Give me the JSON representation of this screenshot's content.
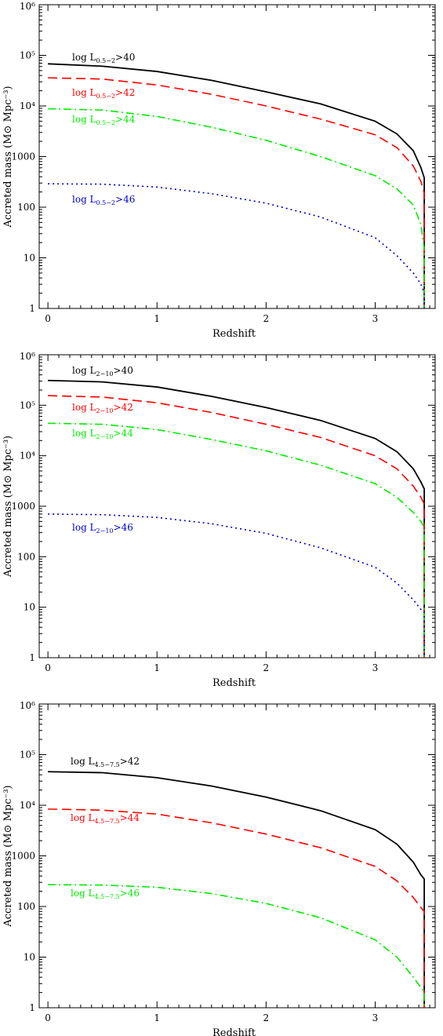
{
  "chart_data": [
    {
      "type": "line",
      "xlabel": "Redshift",
      "ylabel": "Accreted mass (M⊙ Mpc⁻³)",
      "yscale": "log",
      "xlim": [
        -0.08,
        3.55
      ],
      "ylim": [
        1,
        1000000
      ],
      "x_ticks": [
        "0",
        "1",
        "2",
        "3"
      ],
      "y_ticks": [
        "1",
        "10",
        "100",
        "1000",
        "10⁴",
        "10⁵",
        "10⁶"
      ],
      "grid": false,
      "x": [
        0,
        0.5,
        1,
        1.5,
        2,
        2.5,
        3,
        3.2,
        3.35,
        3.42,
        3.45
      ],
      "series": [
        {
          "name": "log L₀.₅₋₂>40",
          "name_main": "log L",
          "name_sub": "0.5−2",
          "name_tail": ">40",
          "color": "#000000",
          "style": "solid",
          "values": [
            68000,
            61000,
            48000,
            32000,
            19000,
            11000,
            5000,
            2800,
            1300,
            600,
            380
          ]
        },
        {
          "name": "log L₀.₅₋₂>42",
          "name_main": "log L",
          "name_sub": "0.5−2",
          "name_tail": ">42",
          "color": "#ff0000",
          "style": "dashed",
          "values": [
            36000,
            34000,
            26000,
            17000,
            10000,
            5500,
            2700,
            1500,
            650,
            320,
            190
          ]
        },
        {
          "name": "log L₀.₅₋₂>44",
          "name_main": "log L",
          "name_sub": "0.5−2",
          "name_tail": ">44",
          "color": "#00ee00",
          "style": "dashdot",
          "values": [
            8800,
            8300,
            6200,
            3800,
            2100,
            1000,
            420,
            230,
            110,
            45,
            15
          ]
        },
        {
          "name": "log L₀.₅₋₂>46",
          "name_main": "log L",
          "name_sub": "0.5−2",
          "name_tail": ">46",
          "color": "#0000cc",
          "style": "dotted",
          "values": [
            290,
            285,
            250,
            185,
            120,
            64,
            25,
            11,
            5,
            3,
            2
          ]
        }
      ]
    },
    {
      "type": "line",
      "xlabel": "Redshift",
      "ylabel": "Accreted mass (M⊙ Mpc⁻³)",
      "yscale": "log",
      "xlim": [
        -0.08,
        3.55
      ],
      "ylim": [
        1,
        1000000
      ],
      "x_ticks": [
        "0",
        "1",
        "2",
        "3"
      ],
      "y_ticks": [
        "1",
        "10",
        "100",
        "1000",
        "10⁴",
        "10⁵",
        "10⁶"
      ],
      "grid": false,
      "x": [
        0,
        0.5,
        1,
        1.5,
        2,
        2.5,
        3,
        3.2,
        3.35,
        3.42,
        3.45
      ],
      "series": [
        {
          "name": "log L₂₋₁₀>40",
          "name_main": "log L",
          "name_sub": "2−10",
          "name_tail": ">40",
          "color": "#000000",
          "style": "solid",
          "values": [
            310000,
            290000,
            230000,
            150000,
            90000,
            50000,
            22000,
            12000,
            5500,
            3000,
            2200
          ]
        },
        {
          "name": "log L₂₋₁₀>42",
          "name_main": "log L",
          "name_sub": "2−10",
          "name_tail": ">42",
          "color": "#ff0000",
          "style": "dashed",
          "values": [
            155000,
            145000,
            112000,
            72000,
            42000,
            23000,
            10000,
            5500,
            2500,
            1500,
            1100
          ]
        },
        {
          "name": "log L₂₋₁₀>44",
          "name_main": "log L",
          "name_sub": "2−10",
          "name_tail": ">44",
          "color": "#00ee00",
          "style": "dashdot",
          "values": [
            44000,
            42000,
            33000,
            21000,
            12500,
            6500,
            2800,
            1500,
            750,
            500,
            380
          ]
        },
        {
          "name": "log L₂₋₁₀>46",
          "name_main": "log L",
          "name_sub": "2−10",
          "name_tail": ">46",
          "color": "#0000cc",
          "style": "dotted",
          "values": [
            700,
            680,
            600,
            450,
            290,
            150,
            62,
            30,
            14,
            9,
            8
          ]
        }
      ]
    },
    {
      "type": "line",
      "xlabel": "Redshift",
      "ylabel": "Accreted mass (M⊙ Mpc⁻³)",
      "yscale": "log",
      "xlim": [
        -0.08,
        3.55
      ],
      "ylim": [
        1,
        1000000
      ],
      "x_ticks": [
        "0",
        "1",
        "2",
        "3"
      ],
      "y_ticks": [
        "1",
        "10",
        "100",
        "1000",
        "10⁴",
        "10⁵",
        "10⁶"
      ],
      "grid": false,
      "x": [
        0,
        0.5,
        1,
        1.5,
        2,
        2.5,
        3,
        3.2,
        3.35,
        3.42,
        3.45
      ],
      "series": [
        {
          "name": "log L₄.₅₋₇.₅>42",
          "name_main": "log L",
          "name_sub": "4.5−7.5",
          "name_tail": ">42",
          "color": "#000000",
          "style": "solid",
          "values": [
            46000,
            44000,
            35000,
            24000,
            14500,
            7800,
            3300,
            1700,
            750,
            420,
            350
          ]
        },
        {
          "name": "log L₄.₅₋₇.₅>44",
          "name_main": "log L",
          "name_sub": "4.5−7.5",
          "name_tail": ">44",
          "color": "#ff0000",
          "style": "dashed",
          "values": [
            8400,
            8000,
            6700,
            4500,
            2700,
            1450,
            620,
            320,
            150,
            95,
            80
          ]
        },
        {
          "name": "log L₄.₅₋₇.₅>46",
          "name_main": "log L",
          "name_sub": "4.5−7.5",
          "name_tail": ">46",
          "color": "#00ee00",
          "style": "dashdot",
          "values": [
            270,
            265,
            240,
            180,
            115,
            60,
            22,
            10,
            4,
            2.5,
            2
          ]
        }
      ]
    }
  ]
}
